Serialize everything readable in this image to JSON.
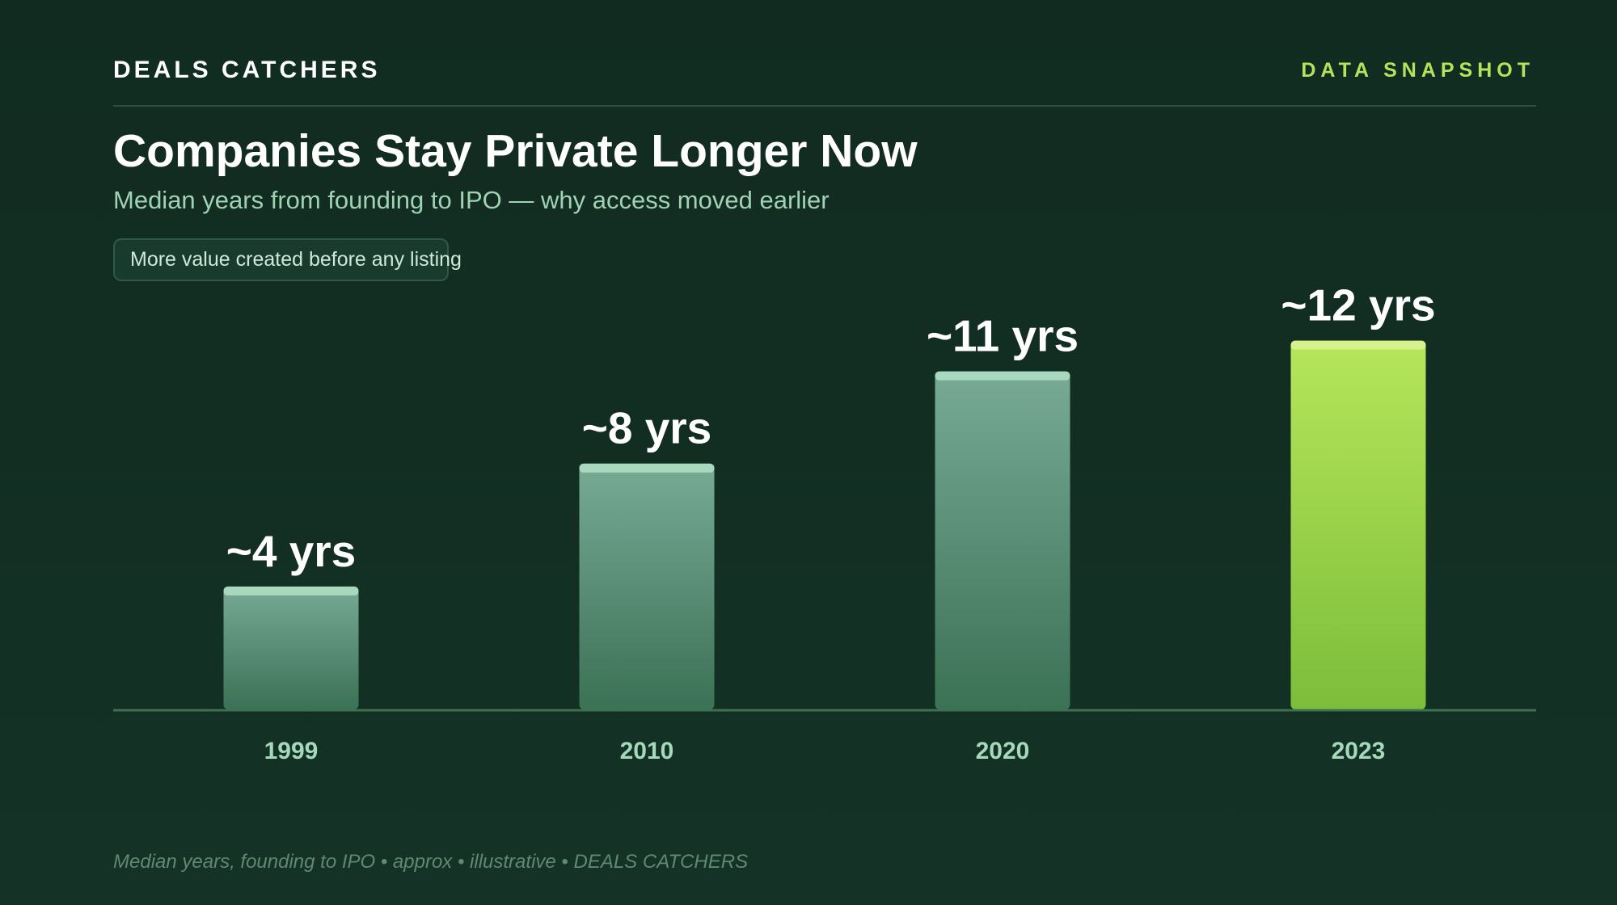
{
  "header": {
    "brand": "DEALS CATCHERS",
    "tag": "DATA SNAPSHOT"
  },
  "title": "Companies Stay Private Longer Now",
  "subtitle": "Median years from founding to IPO — why access moved earlier",
  "callout": "More value created before any listing",
  "footnote": "Median years, founding to IPO • approx • illustrative • DEALS CATCHERS",
  "colors": {
    "background": "#12291f",
    "bar": "#6aa88e",
    "highlight_bar": "#b5e35a",
    "accent": "#b5e35a"
  },
  "chart_data": {
    "type": "bar",
    "categories": [
      "1999",
      "2010",
      "2020",
      "2023"
    ],
    "values": [
      4,
      8,
      11,
      12
    ],
    "data_labels": [
      "~4 yrs",
      "~8 yrs",
      "~11 yrs",
      "~12 yrs"
    ],
    "highlight_index": 3,
    "ylim": [
      0,
      12.7
    ],
    "grid": false,
    "legend": "none"
  }
}
